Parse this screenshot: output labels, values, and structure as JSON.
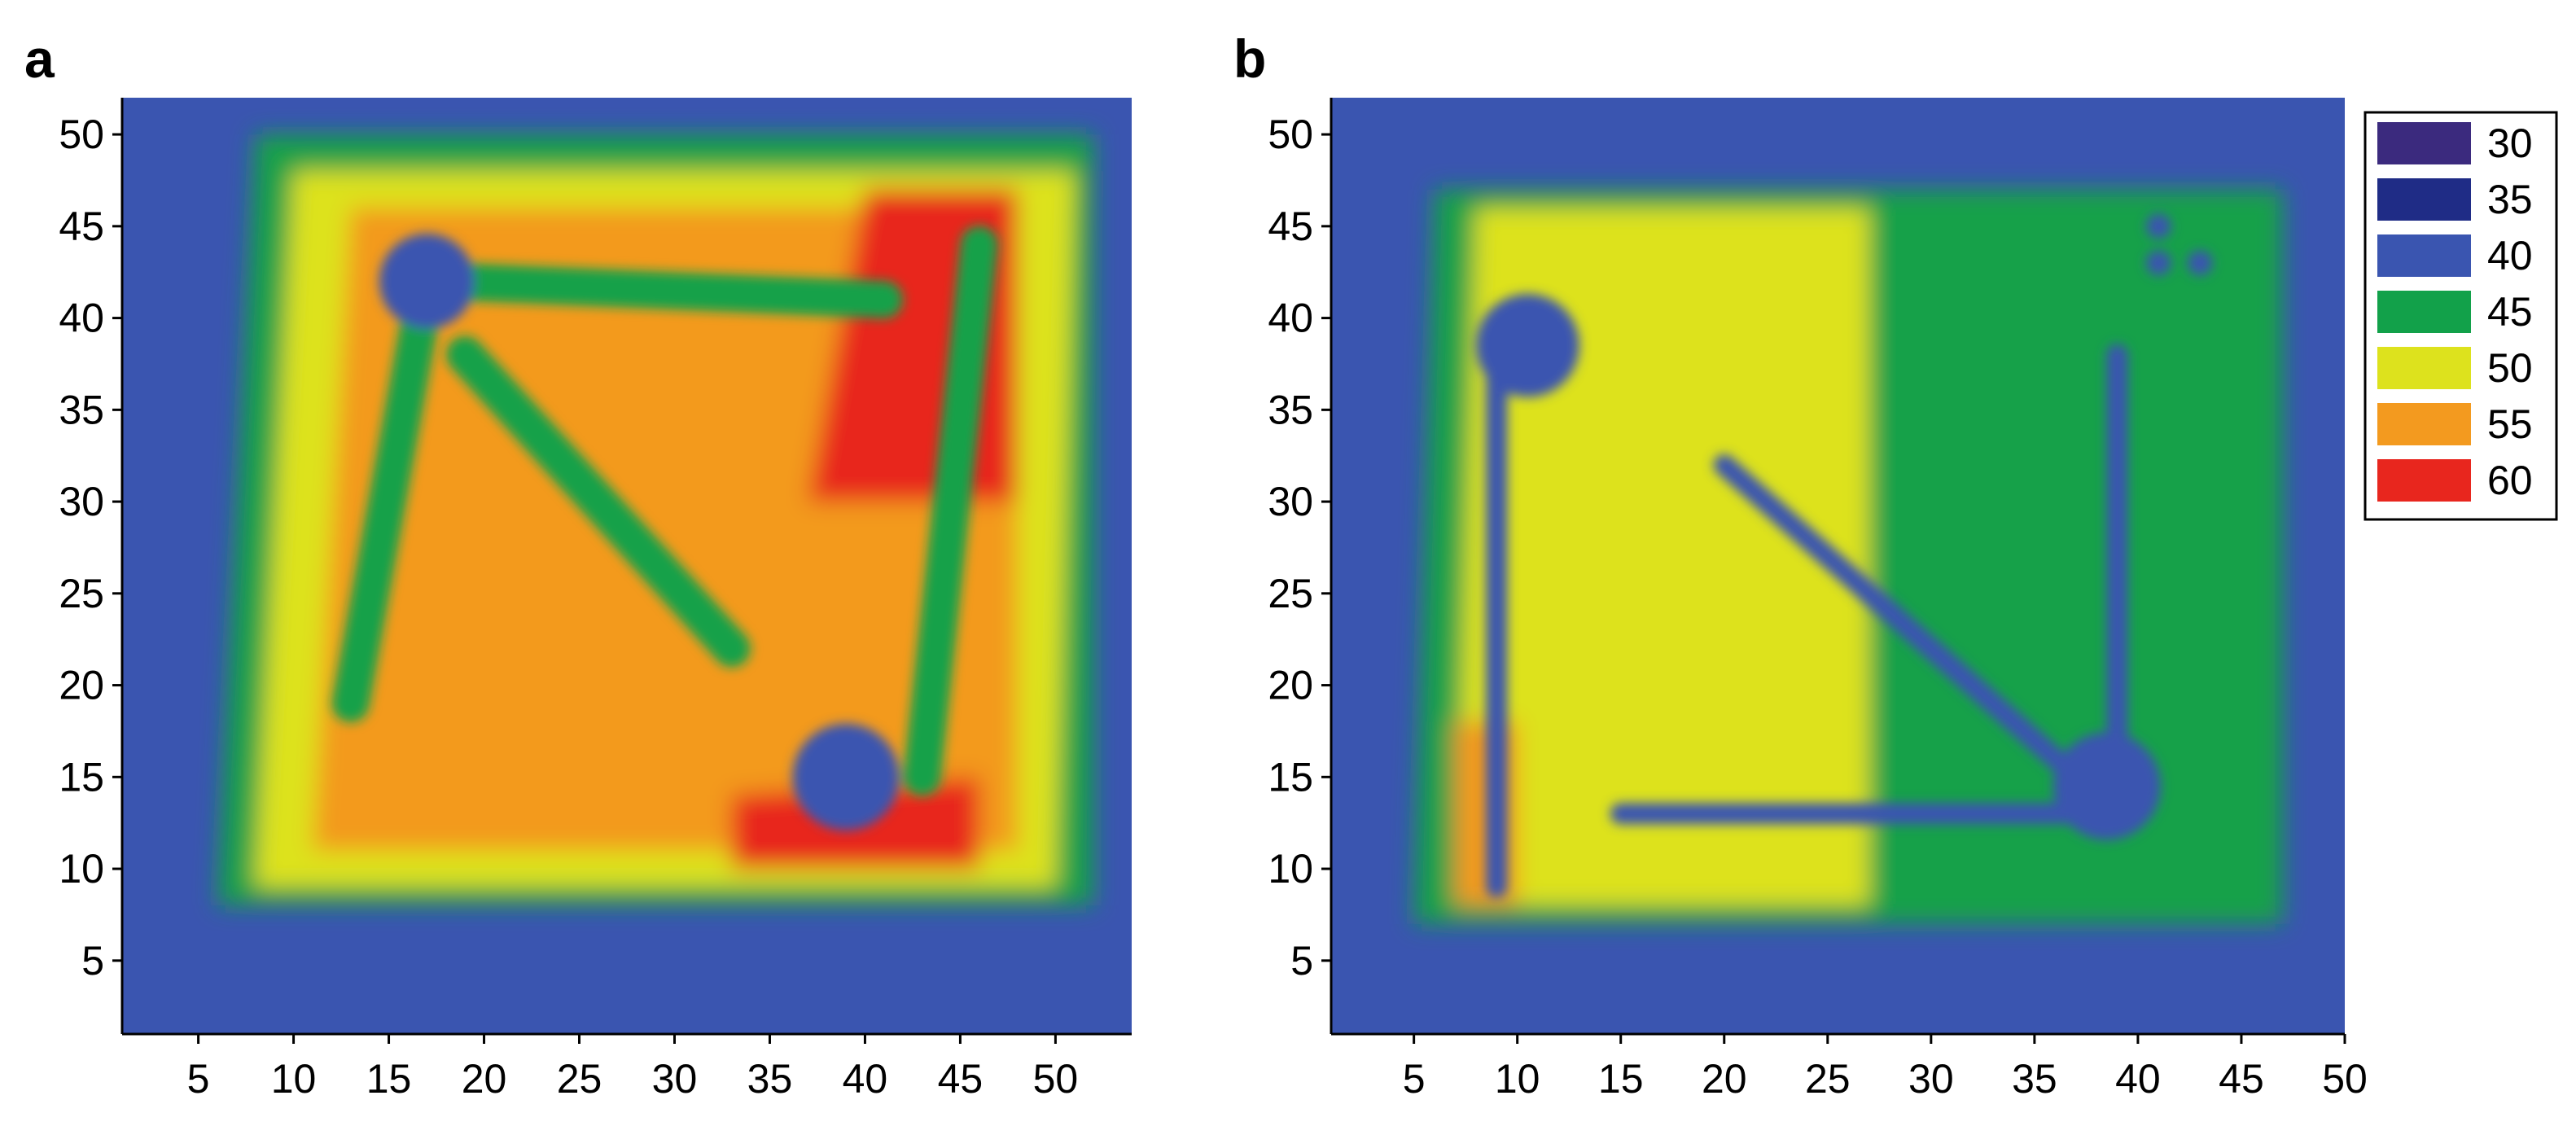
{
  "figure": {
    "legend": {
      "position": "right of panel b",
      "entries": [
        {
          "label": "30",
          "color": "#3b2a7e"
        },
        {
          "label": "35",
          "color": "#1f2c86"
        },
        {
          "label": "40",
          "color": "#3a55b0"
        },
        {
          "label": "45",
          "color": "#12a14a"
        },
        {
          "label": "50",
          "color": "#dde21d"
        },
        {
          "label": "55",
          "color": "#f39a1f"
        },
        {
          "label": "60",
          "color": "#e8261e"
        }
      ]
    }
  },
  "chart_data": [
    {
      "type": "heatmap",
      "panel_label": "a",
      "title": "",
      "xlabel": "",
      "ylabel": "",
      "xlim": [
        1,
        54
      ],
      "ylim": [
        1,
        52
      ],
      "xticks": [
        "5",
        "10",
        "15",
        "20",
        "25",
        "30",
        "35",
        "40",
        "45",
        "50"
      ],
      "yticks": [
        "5",
        "10",
        "15",
        "20",
        "25",
        "30",
        "35",
        "40",
        "45",
        "50"
      ],
      "grid": false,
      "levels": [
        30,
        35,
        40,
        45,
        50,
        55,
        60
      ],
      "background_level": 40,
      "features": [
        {
          "kind": "region",
          "shape": "polygon",
          "level": 45,
          "points": [
            [
              6,
              8
            ],
            [
              52,
              8
            ],
            [
              52,
              50
            ],
            [
              8,
              50
            ]
          ]
        },
        {
          "kind": "region",
          "shape": "polygon",
          "level": 50,
          "points": [
            [
              8,
              9
            ],
            [
              50,
              9
            ],
            [
              51,
              48
            ],
            [
              10,
              48
            ]
          ]
        },
        {
          "kind": "region",
          "shape": "polygon",
          "level": 55,
          "points": [
            [
              11,
              11
            ],
            [
              48,
              11
            ],
            [
              48,
              46
            ],
            [
              13,
              46
            ]
          ]
        },
        {
          "kind": "region",
          "shape": "polygon",
          "level": 60,
          "points": [
            [
              37,
              30
            ],
            [
              48,
              30
            ],
            [
              48,
              47
            ],
            [
              40,
              47
            ]
          ]
        },
        {
          "kind": "region",
          "shape": "polygon",
          "level": 60,
          "points": [
            [
              33,
              10
            ],
            [
              46,
              10
            ],
            [
              46,
              15
            ],
            [
              33,
              14
            ]
          ]
        },
        {
          "kind": "channel",
          "level": 45,
          "from": [
            13,
            19
          ],
          "to": [
            17,
            42
          ]
        },
        {
          "kind": "channel",
          "level": 45,
          "from": [
            18,
            42
          ],
          "to": [
            41,
            41
          ]
        },
        {
          "kind": "channel",
          "level": 45,
          "from": [
            19,
            38
          ],
          "to": [
            33,
            22
          ]
        },
        {
          "kind": "channel",
          "level": 45,
          "from": [
            46,
            44
          ],
          "to": [
            43,
            15
          ]
        },
        {
          "kind": "pocket",
          "level": 40,
          "center": [
            17,
            42
          ],
          "r": 2.5
        },
        {
          "kind": "pocket",
          "level": 40,
          "center": [
            39,
            15
          ],
          "r": 2.8
        }
      ]
    },
    {
      "type": "heatmap",
      "panel_label": "b",
      "title": "",
      "xlabel": "",
      "ylabel": "",
      "xlim": [
        1,
        50
      ],
      "ylim": [
        1,
        52
      ],
      "xticks": [
        "5",
        "10",
        "15",
        "20",
        "25",
        "30",
        "35",
        "40",
        "45",
        "50"
      ],
      "yticks": [
        "5",
        "10",
        "15",
        "20",
        "25",
        "30",
        "35",
        "40",
        "45",
        "50"
      ],
      "grid": false,
      "levels": [
        30,
        35,
        40,
        45,
        50,
        55,
        60
      ],
      "background_level": 40,
      "features": [
        {
          "kind": "region",
          "shape": "polygon",
          "level": 45,
          "points": [
            [
              5,
              7
            ],
            [
              47,
              7
            ],
            [
              47,
              47
            ],
            [
              6,
              47
            ]
          ]
        },
        {
          "kind": "region",
          "shape": "polygon",
          "level": 50,
          "points": [
            [
              7,
              8
            ],
            [
              27,
              8
            ],
            [
              27,
              46
            ],
            [
              8,
              46
            ]
          ]
        },
        {
          "kind": "region",
          "shape": "polygon",
          "level": 55,
          "points": [
            [
              7,
              8
            ],
            [
              10,
              8
            ],
            [
              10,
              18
            ],
            [
              7,
              18
            ]
          ]
        },
        {
          "kind": "channel",
          "level": 40,
          "from": [
            9,
            9
          ],
          "to": [
            9,
            38
          ]
        },
        {
          "kind": "channel",
          "level": 40,
          "from": [
            15,
            13
          ],
          "to": [
            37,
            13
          ]
        },
        {
          "kind": "channel",
          "level": 40,
          "from": [
            20,
            32
          ],
          "to": [
            37,
            15
          ]
        },
        {
          "kind": "channel",
          "level": 40,
          "from": [
            39,
            15
          ],
          "to": [
            39,
            38
          ]
        },
        {
          "kind": "pocket",
          "level": 40,
          "center": [
            10.5,
            38.5
          ],
          "r": 2.5
        },
        {
          "kind": "pocket",
          "level": 40,
          "center": [
            38.5,
            14.5
          ],
          "r": 2.6
        },
        {
          "kind": "pocket",
          "level": 40,
          "center": [
            41,
            45
          ],
          "r": 0.6
        },
        {
          "kind": "pocket",
          "level": 40,
          "center": [
            41,
            43
          ],
          "r": 0.6
        },
        {
          "kind": "pocket",
          "level": 40,
          "center": [
            43,
            43
          ],
          "r": 0.6
        }
      ]
    }
  ]
}
